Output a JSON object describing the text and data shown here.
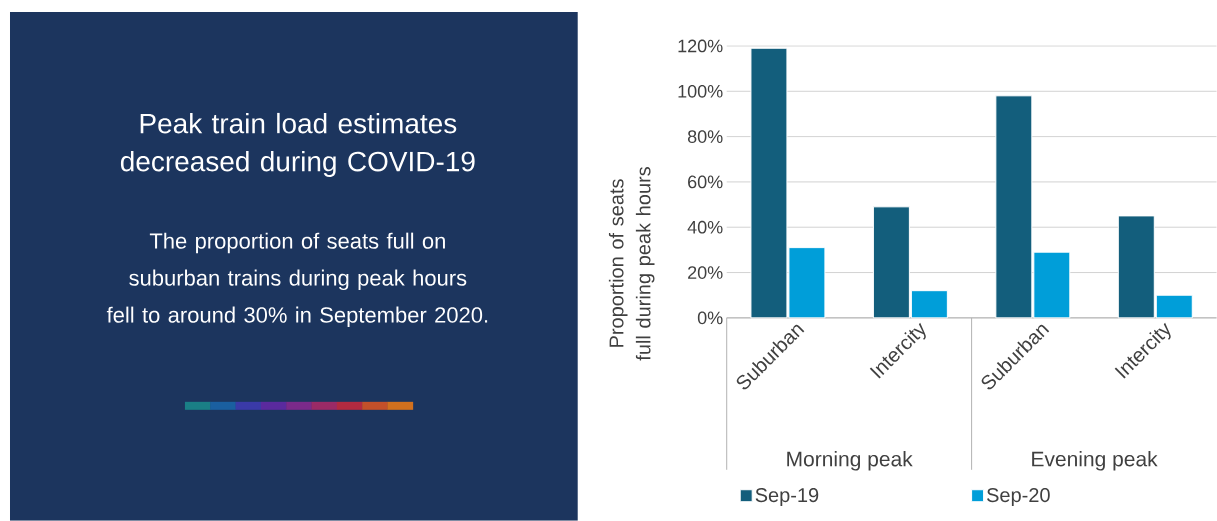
{
  "chart_data": {
    "type": "bar",
    "title": "Peak train load estimates decreased during COVID-19",
    "subtitle": "The proportion of seats full on suburban trains during peak hours fell to around 30% in September 2020.",
    "ylabel": "Proportion of seats full during peak hours",
    "categories": [
      "Suburban",
      "Intercity",
      "Suburban",
      "Intercity"
    ],
    "series": [
      {
        "name": "Sep-19",
        "color": "#135e7c",
        "values": [
          119,
          49,
          98,
          45
        ]
      },
      {
        "name": "Sep-20",
        "color": "#009ed9",
        "values": [
          31,
          12,
          29,
          10
        ]
      }
    ],
    "ylim": [
      0,
      120
    ],
    "yticks": [
      {
        "value": 0,
        "label": "0%"
      },
      {
        "value": 20,
        "label": "20%"
      },
      {
        "value": 40,
        "label": "40%"
      },
      {
        "value": 60,
        "label": "60%"
      },
      {
        "value": 80,
        "label": "80%"
      },
      {
        "value": 100,
        "label": "100%"
      },
      {
        "value": 120,
        "label": "120%"
      }
    ],
    "grid": "y",
    "legend": "bottom",
    "annotations": [
      "Morning peak",
      "Evening peak"
    ]
  }
}
